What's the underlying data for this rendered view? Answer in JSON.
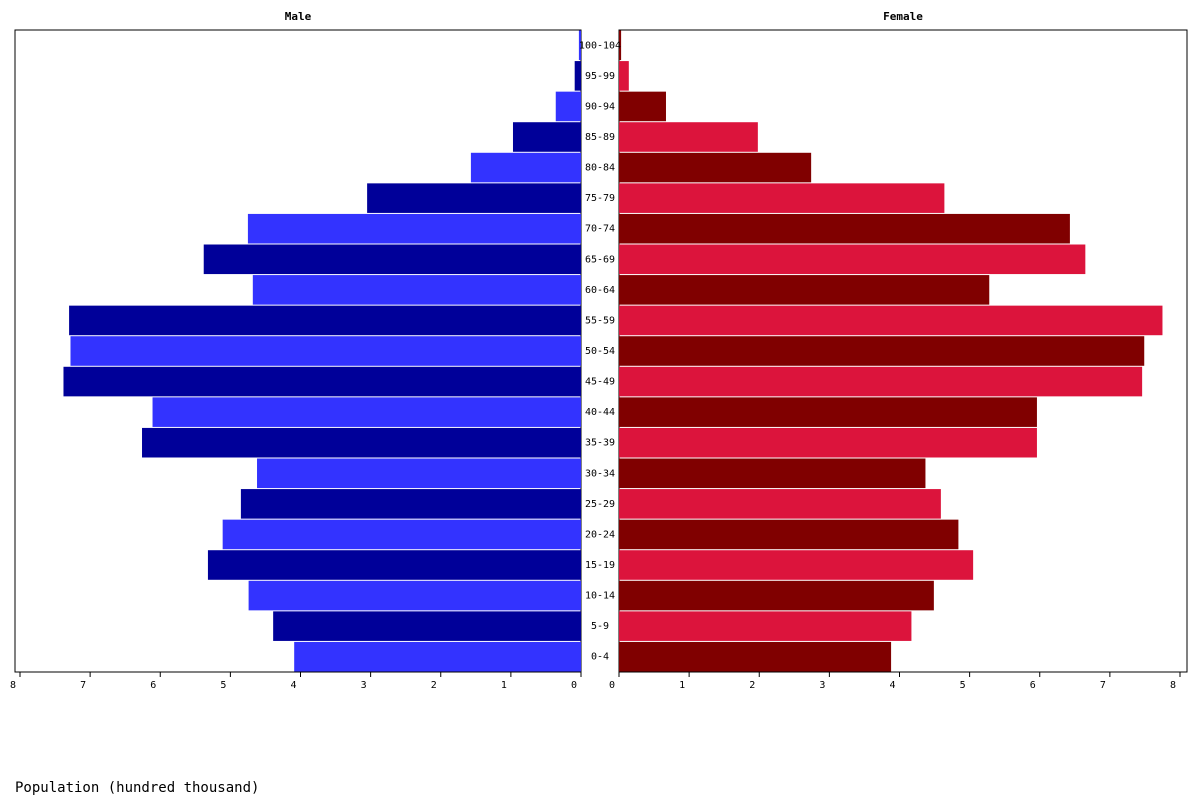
{
  "chart_data": {
    "type": "pyramid",
    "categories": [
      "0-4",
      "5-9",
      "10-14",
      "15-19",
      "20-24",
      "25-29",
      "30-34",
      "35-39",
      "40-44",
      "45-49",
      "50-54",
      "55-59",
      "60-64",
      "65-69",
      "70-74",
      "75-79",
      "80-84",
      "85-89",
      "90-94",
      "95-99",
      "100-104"
    ],
    "series": [
      {
        "name": "Male",
        "colors": [
          "#3333ff",
          "#000099"
        ],
        "values": [
          4.09,
          4.39,
          4.74,
          5.32,
          5.11,
          4.85,
          4.62,
          6.26,
          6.11,
          7.38,
          7.28,
          7.3,
          4.68,
          5.38,
          4.75,
          3.05,
          1.57,
          0.97,
          0.36,
          0.09,
          0.03
        ]
      },
      {
        "name": "Female",
        "colors": [
          "#800000",
          "#dc143c"
        ],
        "values": [
          3.88,
          4.17,
          4.49,
          5.05,
          4.84,
          4.59,
          4.37,
          5.96,
          5.96,
          7.46,
          7.49,
          7.75,
          5.28,
          6.65,
          6.43,
          4.64,
          2.74,
          1.98,
          0.67,
          0.14,
          0.03
        ]
      }
    ],
    "xlim": [
      0,
      8
    ],
    "xticks": [
      0,
      1,
      2,
      3,
      4,
      5,
      6,
      7,
      8
    ],
    "xlabel": "Population (hundred thousand)"
  }
}
